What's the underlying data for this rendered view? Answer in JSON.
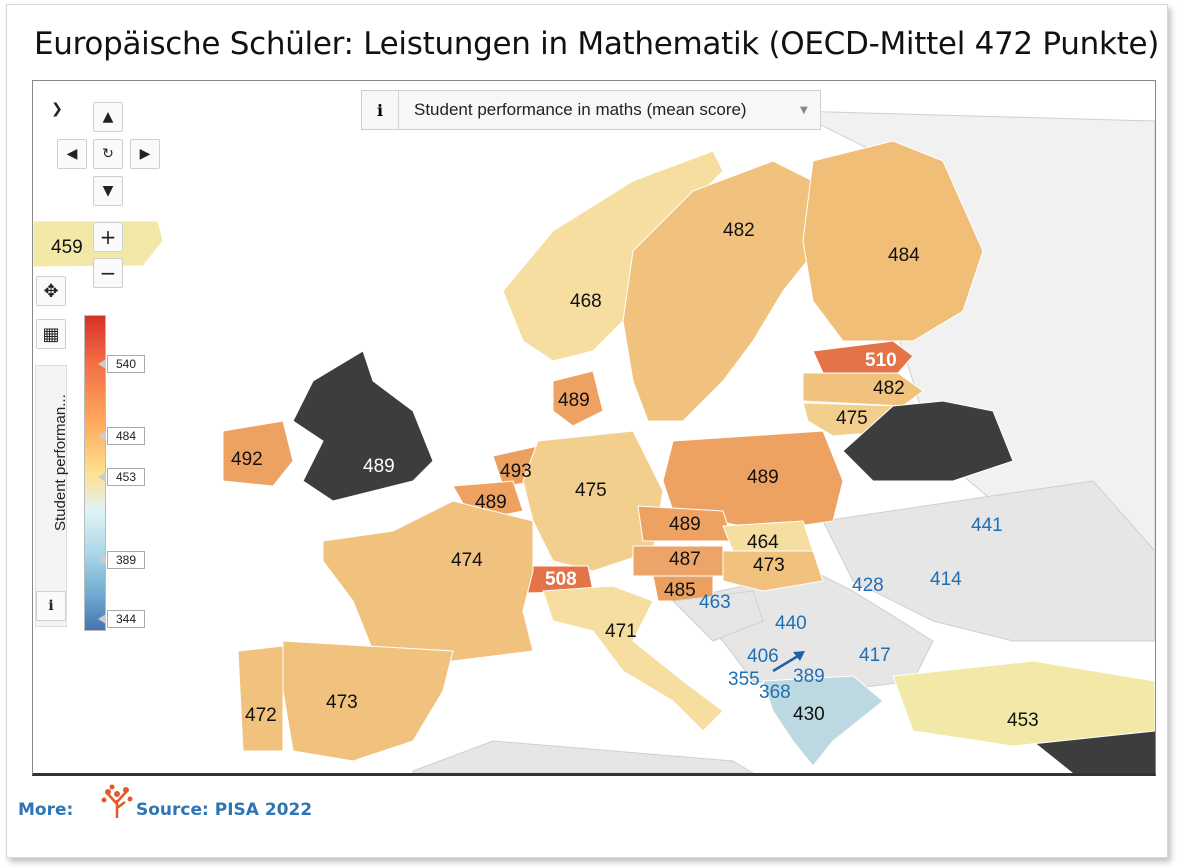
{
  "title": "Europäische Schüler: Leistungen in Mathematik (OECD-Mittel 472 Punkte)",
  "indicator": {
    "info": "i",
    "label": "Student performance in maths (mean score)"
  },
  "legend": {
    "title": "Student performan...",
    "info": "i",
    "ticks": [
      "540",
      "484",
      "453",
      "389",
      "344"
    ],
    "colors": {
      "high": "#d73027",
      "mid": "#fee090",
      "low": "#4575b4",
      "nodata": "#e6e6e6",
      "excluded": "#3d3d3d"
    }
  },
  "controls": {
    "expand": "❯",
    "up": "▲",
    "left": "◀",
    "rotate": "↻",
    "right": "▶",
    "down": "▼",
    "zoom_in": "+",
    "zoom_out": "−",
    "move": "✥",
    "layout": "▦"
  },
  "values": {
    "greenland": "459",
    "norway": "468",
    "sweden": "482",
    "finland": "484",
    "estonia": "510",
    "latvia": "482",
    "lithuania": "475",
    "denmark": "489",
    "ireland": "492",
    "uk": "489",
    "netherlands": "493",
    "belgium": "489",
    "germany": "475",
    "poland": "489",
    "czechia": "489",
    "slovakia": "464",
    "austria": "487",
    "hungary": "473",
    "switzerland": "508",
    "france": "474",
    "slovenia": "485",
    "croatia": "463",
    "italy": "471",
    "serbia": "440",
    "romania": "428",
    "moldova": "414",
    "ukraine": "441",
    "bulgaria": "417",
    "montenegro": "406",
    "albania": "368",
    "kosovo": "355",
    "north_macedonia": "389",
    "greece": "430",
    "turkey": "453",
    "spain": "473",
    "portugal": "472"
  },
  "footer": {
    "more": "More:",
    "source": "Source: PISA 2022"
  }
}
